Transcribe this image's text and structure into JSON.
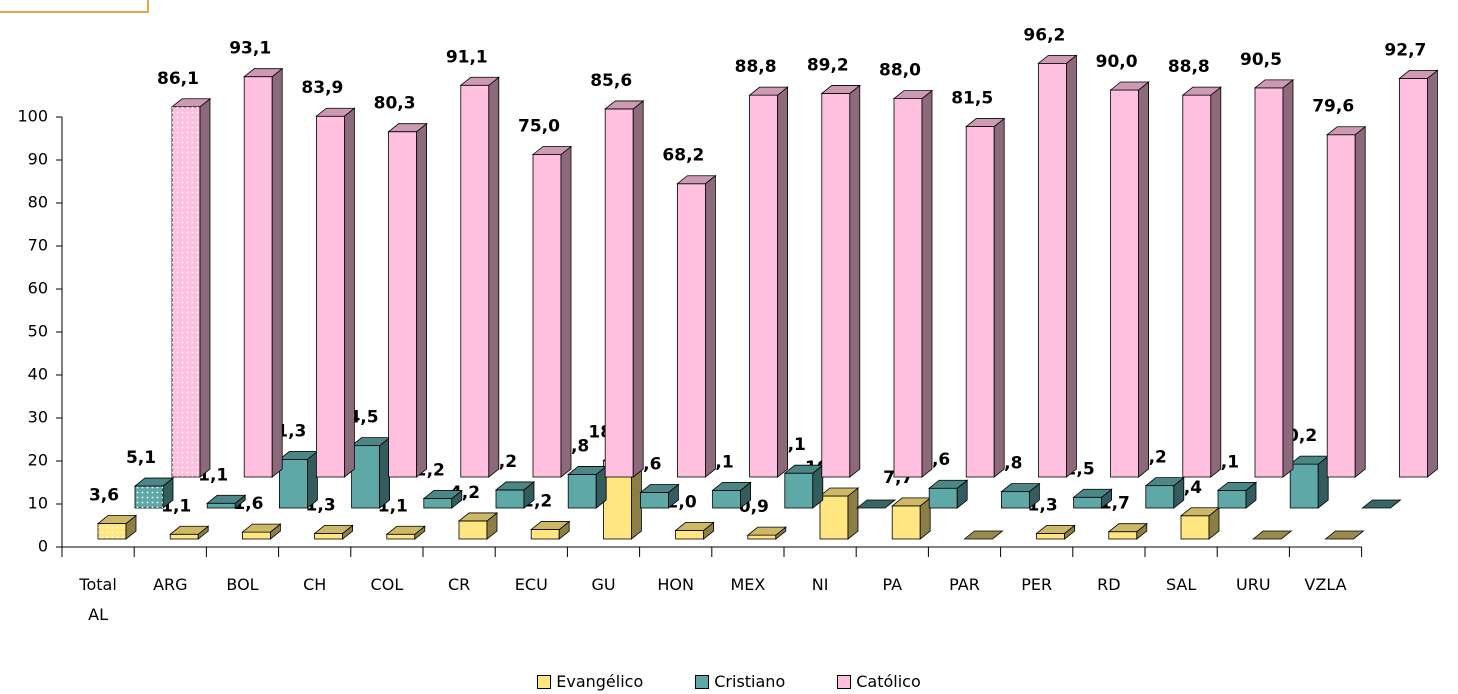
{
  "chart_data": {
    "type": "bar3d",
    "categories": [
      "Total AL",
      "ARG",
      "BOL",
      "CH",
      "COL",
      "CR",
      "ECU",
      "GU",
      "HON",
      "MEX",
      "NI",
      "PA",
      "PAR",
      "PER",
      "RD",
      "SAL",
      "URU",
      "VZLA"
    ],
    "series": [
      {
        "name": "Evangélico",
        "color": "#ffe680",
        "values": [
          3.6,
          1.1,
          1.6,
          1.3,
          1.1,
          4.2,
          2.2,
          18.2,
          2.0,
          0.9,
          10.0,
          7.7,
          null,
          1.3,
          1.7,
          5.4,
          null,
          null
        ],
        "value_labels": [
          "3,6",
          "1,1",
          "1,6",
          "1,3",
          "1,1",
          "4,2",
          "2,2",
          "18,2",
          "2,0",
          "0,9",
          "10,0",
          "7,7",
          null,
          "1,3",
          "1,7",
          "5,4",
          null,
          null
        ]
      },
      {
        "name": "Cristiano",
        "color": "#5fa8a8",
        "values": [
          5.1,
          1.1,
          11.3,
          14.5,
          2.2,
          4.2,
          7.8,
          3.6,
          4.1,
          8.1,
          null,
          4.6,
          3.8,
          2.5,
          5.2,
          4.1,
          10.2,
          null
        ],
        "value_labels": [
          "5,1",
          "1,1",
          "11,3",
          "14,5",
          "2,2",
          "4,2",
          "7,8",
          "3,6",
          "4,1",
          "8,1",
          null,
          "4,6",
          "3,8",
          "2,5",
          "5,2",
          "4,1",
          "10,2",
          null
        ]
      },
      {
        "name": "Católico",
        "color": "#ffc0e0",
        "values": [
          86.1,
          93.1,
          83.9,
          80.3,
          91.1,
          75.0,
          85.6,
          68.2,
          88.8,
          89.2,
          88.0,
          81.5,
          96.2,
          90.0,
          88.8,
          90.5,
          79.6,
          92.7
        ],
        "value_labels": [
          "86,1",
          "93,1",
          "83,9",
          "80,3",
          "91,1",
          "75,0",
          "85,6",
          "68,2",
          "88,8",
          "89,2",
          "88,0",
          "81,5",
          "96,2",
          "90,0",
          "88,8",
          "90,5",
          "79,6",
          "92,7"
        ]
      }
    ],
    "ylim": [
      0,
      100
    ],
    "yticks": [
      0,
      10,
      20,
      30,
      40,
      50,
      60,
      70,
      80,
      90,
      100
    ],
    "grid": false,
    "legend": "bottom"
  }
}
